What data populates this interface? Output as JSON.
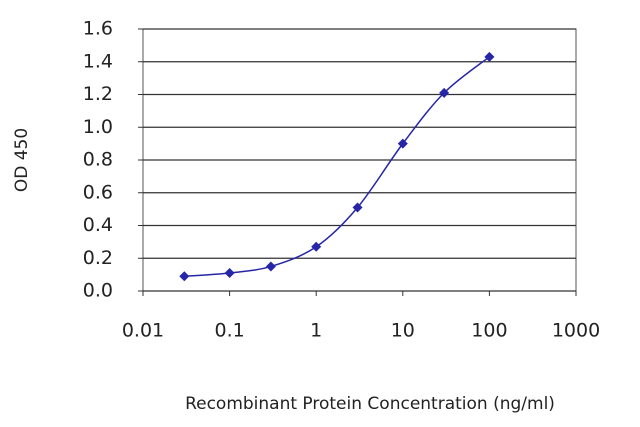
{
  "chart_data": {
    "type": "scatter",
    "x_label": "Recombinant Protein Concentration (ng/ml)",
    "y_label": "OD 450",
    "xscale": "log",
    "grid": true,
    "xlim": [
      0.01,
      1000
    ],
    "xticks": [
      0.01,
      0.1,
      1,
      10,
      100,
      1000
    ],
    "ylim": [
      0,
      1.6
    ],
    "yticks": [
      {
        "value": 0,
        "label": "0.0"
      },
      0.2,
      0.4,
      0.6,
      0.8,
      {
        "value": 1,
        "label": "1.0"
      },
      1.2,
      1.4,
      1.6
    ],
    "series": [
      {
        "color": "#2626a6",
        "x": [
          0.03,
          0.1,
          0.3,
          1,
          3,
          10,
          30,
          100
        ],
        "values": [
          0.09,
          0.11,
          0.15,
          0.27,
          0.51,
          0.9,
          1.21,
          1.43
        ]
      }
    ]
  }
}
